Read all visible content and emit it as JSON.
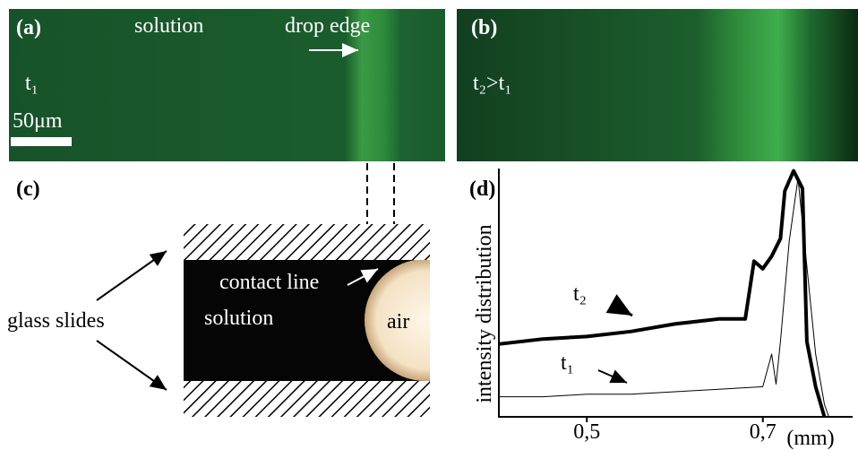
{
  "panels": {
    "a": {
      "label": "(a)",
      "solution": "solution",
      "edge": "drop edge",
      "time": "t₁",
      "scale": "50μm"
    },
    "b": {
      "label": "(b)",
      "time": "t₂>t₁"
    },
    "c": {
      "label": "(c)",
      "contact": "contact line",
      "solution": "solution",
      "air": "air",
      "slides": "glass slides"
    },
    "d": {
      "label": "(d)"
    }
  },
  "chart_data": {
    "type": "line",
    "xlabel": "(mm)",
    "ylabel": "intensity distribution",
    "xlim": [
      0.4,
      0.8
    ],
    "ylim": [
      0,
      1
    ],
    "xticks": [
      {
        "value": 0.5,
        "label": "0,5"
      },
      {
        "value": 0.7,
        "label": "0,7"
      }
    ],
    "series": [
      {
        "name": "t₂",
        "color": "#000000",
        "width": 4,
        "x": [
          0.4,
          0.45,
          0.5,
          0.55,
          0.6,
          0.65,
          0.68,
          0.69,
          0.7,
          0.71,
          0.72,
          0.725,
          0.735,
          0.745,
          0.75,
          0.76,
          0.77
        ],
        "values": [
          0.29,
          0.31,
          0.32,
          0.34,
          0.37,
          0.39,
          0.39,
          0.62,
          0.59,
          0.64,
          0.71,
          0.9,
          0.98,
          0.91,
          0.3,
          0.12,
          0
        ]
      },
      {
        "name": "t₁",
        "color": "#000000",
        "width": 1,
        "x": [
          0.4,
          0.45,
          0.5,
          0.55,
          0.6,
          0.65,
          0.7,
          0.71,
          0.715,
          0.72,
          0.73,
          0.74,
          0.75,
          0.76,
          0.77,
          0.775
        ],
        "values": [
          0.08,
          0.08,
          0.09,
          0.09,
          0.1,
          0.11,
          0.12,
          0.25,
          0.13,
          0.3,
          0.7,
          0.95,
          0.6,
          0.25,
          0.05,
          0
        ]
      }
    ]
  }
}
